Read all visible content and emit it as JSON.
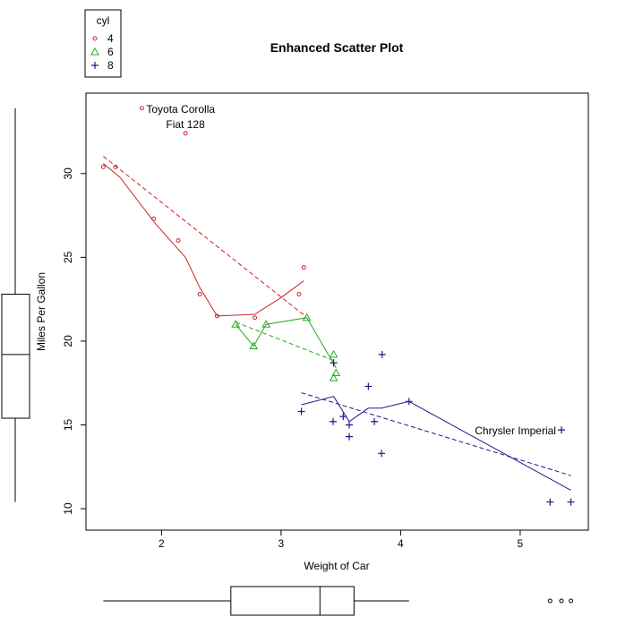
{
  "chart_data": {
    "type": "scatter",
    "title": "Enhanced Scatter Plot",
    "xlabel": "Weight of Car",
    "ylabel": "Miles Per Gallon",
    "xlim": [
      1.368,
      5.57
    ],
    "ylim": [
      8.72,
      34.8
    ],
    "x_ticks": [
      2,
      3,
      4,
      5
    ],
    "y_ticks": [
      10,
      15,
      20,
      25,
      30
    ],
    "grid": false,
    "legend": {
      "title": "cyl",
      "placement": "top-left, outside plot"
    },
    "series": [
      {
        "name": "4",
        "color": "#CC2222",
        "marker": "circle",
        "points": [
          [
            2.32,
            22.8
          ],
          [
            3.19,
            24.4
          ],
          [
            3.15,
            22.8
          ],
          [
            2.2,
            32.4
          ],
          [
            1.615,
            30.4
          ],
          [
            1.835,
            33.9
          ],
          [
            2.465,
            21.5
          ],
          [
            1.935,
            27.3
          ],
          [
            2.14,
            26.0
          ],
          [
            1.513,
            30.4
          ],
          [
            2.78,
            21.4
          ]
        ],
        "regression": [
          [
            1.513,
            31.03
          ],
          [
            3.19,
            21.56
          ]
        ],
        "smooth": [
          [
            1.513,
            30.6
          ],
          [
            1.65,
            29.8
          ],
          [
            1.8,
            28.4
          ],
          [
            1.95,
            27.0
          ],
          [
            2.2,
            25.0
          ],
          [
            2.32,
            23.2
          ],
          [
            2.465,
            21.5
          ],
          [
            2.78,
            21.6
          ],
          [
            3.0,
            22.6
          ],
          [
            3.19,
            23.6
          ]
        ]
      },
      {
        "name": "6",
        "color": "#22AA22",
        "marker": "triangle",
        "points": [
          [
            2.62,
            21.0
          ],
          [
            2.875,
            21.0
          ],
          [
            3.215,
            21.4
          ],
          [
            3.46,
            18.1
          ],
          [
            3.44,
            19.2
          ],
          [
            3.44,
            17.8
          ],
          [
            2.77,
            19.7
          ]
        ],
        "regression": [
          [
            2.62,
            21.13
          ],
          [
            3.46,
            18.79
          ]
        ],
        "smooth": [
          [
            2.62,
            21.0
          ],
          [
            2.77,
            19.7
          ],
          [
            2.875,
            21.0
          ],
          [
            3.215,
            21.4
          ],
          [
            3.46,
            18.4
          ]
        ]
      },
      {
        "name": "8",
        "color": "#1A1A8C",
        "marker": "plus",
        "points": [
          [
            3.44,
            18.7
          ],
          [
            3.57,
            14.3
          ],
          [
            4.07,
            16.4
          ],
          [
            3.73,
            17.3
          ],
          [
            3.78,
            15.2
          ],
          [
            5.25,
            10.4
          ],
          [
            5.424,
            10.4
          ],
          [
            5.345,
            14.7
          ],
          [
            3.52,
            15.5
          ],
          [
            3.435,
            15.2
          ],
          [
            3.84,
            13.3
          ],
          [
            3.845,
            19.2
          ],
          [
            3.17,
            15.8
          ],
          [
            3.57,
            15.0
          ]
        ],
        "regression": [
          [
            3.17,
            16.92
          ],
          [
            5.424,
            11.98
          ]
        ],
        "smooth": [
          [
            3.17,
            16.2
          ],
          [
            3.44,
            16.7
          ],
          [
            3.57,
            15.2
          ],
          [
            3.73,
            16.0
          ],
          [
            3.84,
            16.0
          ],
          [
            4.07,
            16.4
          ],
          [
            5.424,
            11.1
          ]
        ]
      }
    ],
    "annotations": [
      {
        "text": "Toyota Corolla",
        "x": 1.835,
        "y": 33.9
      },
      {
        "text": "Fiat 128",
        "x": 2.2,
        "y": 32.4
      },
      {
        "text": "Chrysler Imperial",
        "x": 5.345,
        "y": 14.7
      }
    ],
    "y_boxplot": {
      "min": 10.4,
      "q1": 15.4,
      "median": 19.2,
      "q3": 22.8,
      "max": 33.9
    },
    "x_boxplot": {
      "min": 1.513,
      "q1": 2.58,
      "median": 3.325,
      "q3": 3.61,
      "max": 4.07,
      "outliers": [
        5.25,
        5.345,
        5.424
      ]
    }
  }
}
